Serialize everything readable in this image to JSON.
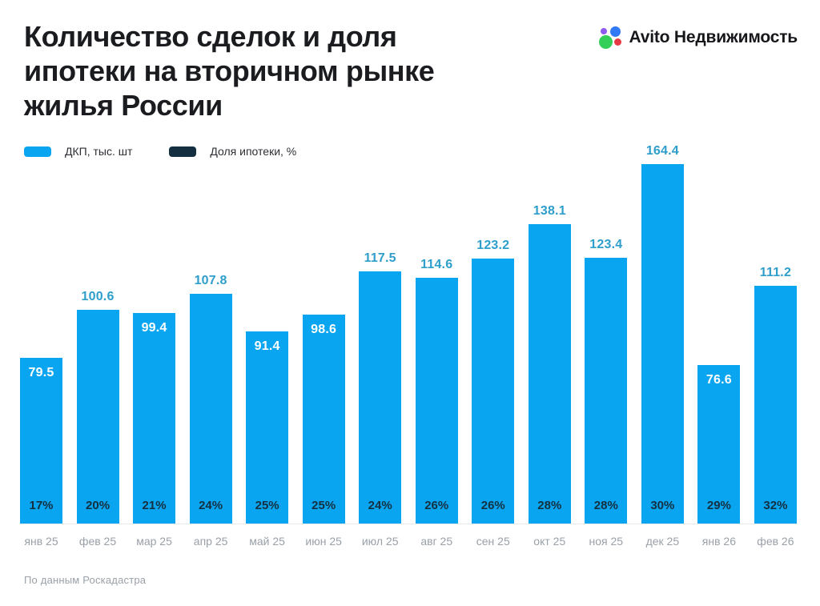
{
  "header": {
    "title_lines": [
      "Количество сделок и доля",
      "ипотеки на вторичном рынке",
      "жилья России"
    ]
  },
  "logo": {
    "brand": "Avito",
    "product": "Недвижимость"
  },
  "legend": {
    "items": [
      {
        "label": "ДКП, тыс. шт",
        "color": "#0aa5f0"
      },
      {
        "label": "Доля ипотеки, %",
        "color": "#143040"
      }
    ]
  },
  "chart_data": {
    "type": "bar",
    "title": "Количество сделок и доля ипотеки на вторичном рынке жилья России",
    "categories": [
      "янв 25",
      "фев 25",
      "мар 25",
      "апр 25",
      "май 25",
      "июн 25",
      "июл 25",
      "авг 25",
      "сен 25",
      "окт 25",
      "ноя 25",
      "дек 25",
      "янв 26",
      "фев 26"
    ],
    "series": [
      {
        "name": "ДКП, тыс. шт",
        "unit": "тыс. шт",
        "color": "#0aa5f0",
        "values": [
          79.5,
          100.6,
          99.4,
          107.8,
          91.4,
          98.6,
          117.5,
          114.6,
          123.2,
          138.1,
          123.4,
          164.4,
          76.6,
          111.2
        ],
        "label_rule": "values below 100 shown in white inside bar top; values 100+ shown in blue above bar"
      },
      {
        "name": "Доля ипотеки, %",
        "unit": "%",
        "color": "#143040",
        "values": [
          17,
          20,
          21,
          24,
          25,
          25,
          24,
          26,
          26,
          28,
          28,
          30,
          29,
          32
        ],
        "display": "dark text labels inside bar bottoms"
      }
    ],
    "ylim": [
      0,
      170
    ],
    "grid": false,
    "y_axis": "hidden",
    "legend_position": "top-left"
  },
  "footer": {
    "source": "По данным Роскадастра"
  },
  "colors": {
    "background": "#ffffff",
    "bar": "#0aa5f0",
    "value_label_above": "#2e9ecb",
    "value_label_inside": "#ffffff",
    "mortgage_label": "#143040",
    "axis_label": "#99a0a8",
    "axis_line": "#e9ebee",
    "title": "#1b1c20",
    "footer": "#9aa1a9",
    "logo_green": "#33cf58",
    "logo_blue": "#3179f7",
    "logo_red": "#e63946",
    "logo_purple": "#8e5af0"
  }
}
